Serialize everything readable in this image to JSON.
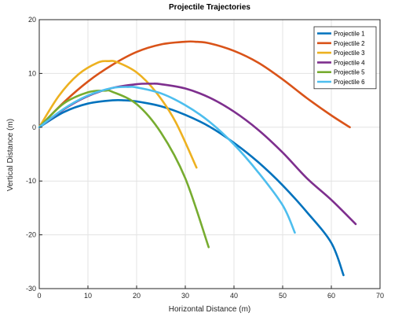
{
  "chart_data": {
    "type": "line",
    "title": "Projectile Trajectories",
    "xlabel": "Horizontal Distance (m)",
    "ylabel": "Vertical Distance (m)",
    "xlim": [
      0,
      70
    ],
    "ylim": [
      -30,
      20
    ],
    "xticks": [
      0,
      10,
      20,
      30,
      40,
      50,
      60,
      70
    ],
    "yticks": [
      -30,
      -20,
      -10,
      0,
      10,
      20
    ],
    "grid": true,
    "legend_position": "top-right",
    "series": [
      {
        "name": "Projectile 1",
        "color": "#0072BD",
        "x": [
          0,
          5,
          10,
          15,
          17.5,
          20,
          25,
          30,
          35,
          40,
          45,
          50,
          55,
          60,
          62.5
        ],
        "y": [
          0,
          2.8,
          4.4,
          5.0,
          5.0,
          4.8,
          3.9,
          2.3,
          0.1,
          -2.9,
          -6.5,
          -10.8,
          -15.8,
          -21.5,
          -27.5
        ]
      },
      {
        "name": "Projectile 2",
        "color": "#D95319",
        "x": [
          0,
          5,
          10,
          15,
          20,
          25,
          30,
          32,
          35,
          40,
          45,
          50,
          55,
          60,
          63.8
        ],
        "y": [
          0,
          4.6,
          8.5,
          11.6,
          14.0,
          15.4,
          15.9,
          15.9,
          15.6,
          14.2,
          12.0,
          8.9,
          5.4,
          2.2,
          0
        ]
      },
      {
        "name": "Projectile 3",
        "color": "#EDB120",
        "x": [
          0,
          4,
          8,
          12,
          14.2,
          16,
          20,
          24,
          28,
          32.3
        ],
        "y": [
          0,
          5.8,
          9.8,
          12.0,
          12.3,
          12.1,
          10.2,
          6.5,
          1.0,
          -7.5
        ]
      },
      {
        "name": "Projectile 4",
        "color": "#7E2F8E",
        "x": [
          0,
          5,
          10,
          15,
          20,
          23,
          25,
          30,
          35,
          40,
          45,
          50,
          55,
          60,
          65
        ],
        "y": [
          0,
          3.3,
          5.8,
          7.3,
          8.0,
          8.1,
          8.0,
          7.2,
          5.5,
          2.9,
          -0.5,
          -4.7,
          -9.5,
          -13.5,
          -18
        ]
      },
      {
        "name": "Projectile 5",
        "color": "#77AC30",
        "x": [
          0,
          5,
          10,
          13.5,
          15,
          20,
          25,
          30,
          34.8
        ],
        "y": [
          0,
          4.4,
          6.5,
          6.8,
          6.6,
          4.3,
          -1.0,
          -9.5,
          -22.3
        ]
      },
      {
        "name": "Projectile 6",
        "color": "#4DBEEE",
        "x": [
          0,
          5,
          10,
          15,
          18.5,
          20,
          25,
          30,
          35,
          40,
          45,
          50,
          52.5
        ],
        "y": [
          0,
          3.4,
          5.9,
          7.3,
          7.5,
          7.4,
          6.3,
          4.1,
          1.0,
          -3.2,
          -8.4,
          -14.5,
          -19.6
        ]
      }
    ]
  }
}
